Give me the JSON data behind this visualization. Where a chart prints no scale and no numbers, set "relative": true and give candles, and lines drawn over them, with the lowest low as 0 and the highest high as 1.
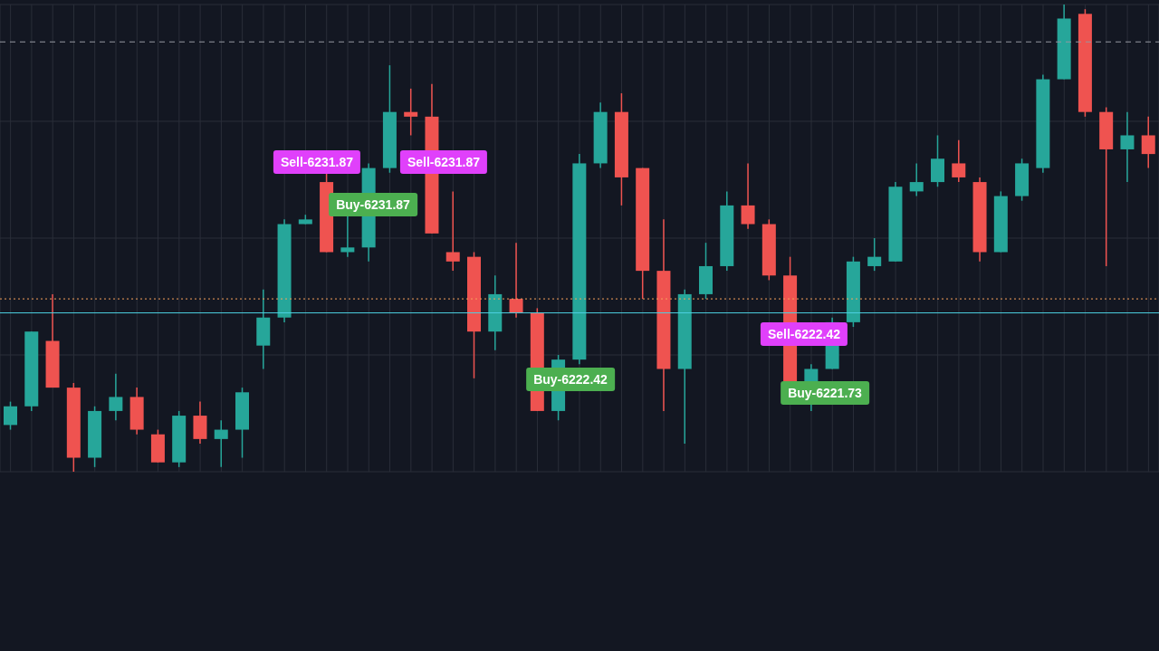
{
  "chart_data": {
    "type": "candlestick",
    "relative": true,
    "grid": true,
    "tick_labels": false,
    "categories": [
      null,
      null,
      null,
      null,
      null,
      null,
      null,
      null,
      null,
      null,
      null,
      null,
      null,
      null,
      null,
      null,
      null,
      null,
      null,
      null,
      null,
      null,
      null,
      null,
      null,
      null,
      null,
      null,
      null,
      null,
      null,
      null,
      null,
      null,
      null,
      null,
      null,
      null,
      null,
      null,
      null,
      null,
      null,
      null,
      null,
      null,
      null,
      null,
      null,
      null,
      null,
      null,
      null,
      null,
      null
    ],
    "ohlc": [
      [
        0.1,
        0.15,
        0.09,
        0.14
      ],
      [
        0.14,
        0.3,
        0.13,
        0.3
      ],
      [
        0.28,
        0.38,
        0.18,
        0.18
      ],
      [
        0.18,
        0.19,
        0,
        0.03
      ],
      [
        0.03,
        0.14,
        0.01,
        0.13
      ],
      [
        0.13,
        0.21,
        0.11,
        0.16
      ],
      [
        0.16,
        0.18,
        0.08,
        0.09
      ],
      [
        0.08,
        0.09,
        0.02,
        0.02
      ],
      [
        0.02,
        0.13,
        0.01,
        0.12
      ],
      [
        0.12,
        0.15,
        0.06,
        0.07
      ],
      [
        0.07,
        0.11,
        0.01,
        0.09
      ],
      [
        0.09,
        0.18,
        0.03,
        0.17
      ],
      [
        0.27,
        0.39,
        0.22,
        0.33
      ],
      [
        0.33,
        0.54,
        0.32,
        0.53
      ],
      [
        0.53,
        0.55,
        0.53,
        0.54
      ],
      [
        0.62,
        0.64,
        0.47,
        0.47
      ],
      [
        0.47,
        0.55,
        0.46,
        0.48
      ],
      [
        0.48,
        0.66,
        0.45,
        0.65
      ],
      [
        0.65,
        0.87,
        0.64,
        0.77
      ],
      [
        0.77,
        0.82,
        0.72,
        0.76
      ],
      [
        0.76,
        0.83,
        0.51,
        0.51
      ],
      [
        0.47,
        0.6,
        0.43,
        0.45
      ],
      [
        0.46,
        0.47,
        0.2,
        0.3
      ],
      [
        0.3,
        0.42,
        0.26,
        0.38
      ],
      [
        0.37,
        0.49,
        0.33,
        0.34
      ],
      [
        0.34,
        0.35,
        0.13,
        0.13
      ],
      [
        0.13,
        0.25,
        0.11,
        0.24
      ],
      [
        0.24,
        0.68,
        0.23,
        0.66
      ],
      [
        0.66,
        0.79,
        0.65,
        0.77
      ],
      [
        0.77,
        0.81,
        0.57,
        0.63
      ],
      [
        0.65,
        0.65,
        0.37,
        0.43
      ],
      [
        0.43,
        0.54,
        0.13,
        0.22
      ],
      [
        0.22,
        0.39,
        0.06,
        0.38
      ],
      [
        0.38,
        0.49,
        0.37,
        0.44
      ],
      [
        0.44,
        0.6,
        0.43,
        0.57
      ],
      [
        0.57,
        0.66,
        0.52,
        0.53
      ],
      [
        0.53,
        0.54,
        0.41,
        0.42
      ],
      [
        0.42,
        0.46,
        0.19,
        0.19
      ],
      [
        0.19,
        0.23,
        0.13,
        0.22
      ],
      [
        0.22,
        0.33,
        0.22,
        0.32
      ],
      [
        0.32,
        0.46,
        0.31,
        0.45
      ],
      [
        0.44,
        0.5,
        0.43,
        0.46
      ],
      [
        0.45,
        0.62,
        0.45,
        0.61
      ],
      [
        0.6,
        0.66,
        0.59,
        0.62
      ],
      [
        0.62,
        0.72,
        0.61,
        0.67
      ],
      [
        0.66,
        0.71,
        0.62,
        0.63
      ],
      [
        0.62,
        0.63,
        0.45,
        0.47
      ],
      [
        0.47,
        0.6,
        0.47,
        0.59
      ],
      [
        0.59,
        0.67,
        0.58,
        0.66
      ],
      [
        0.65,
        0.85,
        0.64,
        0.84
      ],
      [
        0.84,
        1,
        0.84,
        0.97
      ],
      [
        0.98,
        0.99,
        0.76,
        0.77
      ],
      [
        0.77,
        0.78,
        0.44,
        0.69
      ],
      [
        0.69,
        0.77,
        0.62,
        0.72
      ],
      [
        0.72,
        0.76,
        0.65,
        0.68
      ]
    ],
    "colors": [
      "#26a69a",
      "#26a69a",
      "#ef5350",
      "#ef5350",
      "#26a69a",
      "#26a69a",
      "#ef5350",
      "#ef5350",
      "#26a69a",
      "#ef5350",
      "#26a69a",
      "#26a69a",
      "#26a69a",
      "#26a69a",
      "#26a69a",
      "#ef5350",
      "#26a69a",
      "#26a69a",
      "#26a69a",
      "#ef5350",
      "#ef5350",
      "#ef5350",
      "#ef5350",
      "#26a69a",
      "#ef5350",
      "#ef5350",
      "#26a69a",
      "#26a69a",
      "#26a69a",
      "#ef5350",
      "#ef5350",
      "#ef5350",
      "#26a69a",
      "#26a69a",
      "#26a69a",
      "#ef5350",
      "#ef5350",
      "#ef5350",
      "#26a69a",
      "#26a69a",
      "#26a69a",
      "#26a69a",
      "#26a69a",
      "#26a69a",
      "#26a69a",
      "#ef5350",
      "#ef5350",
      "#26a69a",
      "#26a69a",
      "#26a69a",
      "#26a69a",
      "#ef5350",
      "#ef5350",
      "#26a69a",
      "#ef5350"
    ],
    "ref_lines": [
      {
        "axis": "y",
        "value": 0.92,
        "color": "#9598a1",
        "line_style": "dashed"
      },
      {
        "axis": "y",
        "value": 0.37,
        "color": "#f7a35c",
        "line_style": "dotted"
      },
      {
        "axis": "y",
        "value": 0.34,
        "color": "#4dd0e1",
        "line_style": "solid"
      }
    ],
    "annotations": [
      "Sell-6231.87",
      "Buy-6231.87",
      "Sell-6231.87",
      "Buy-6222.42",
      "Sell-6222.42",
      "Buy-6221.73"
    ]
  }
}
